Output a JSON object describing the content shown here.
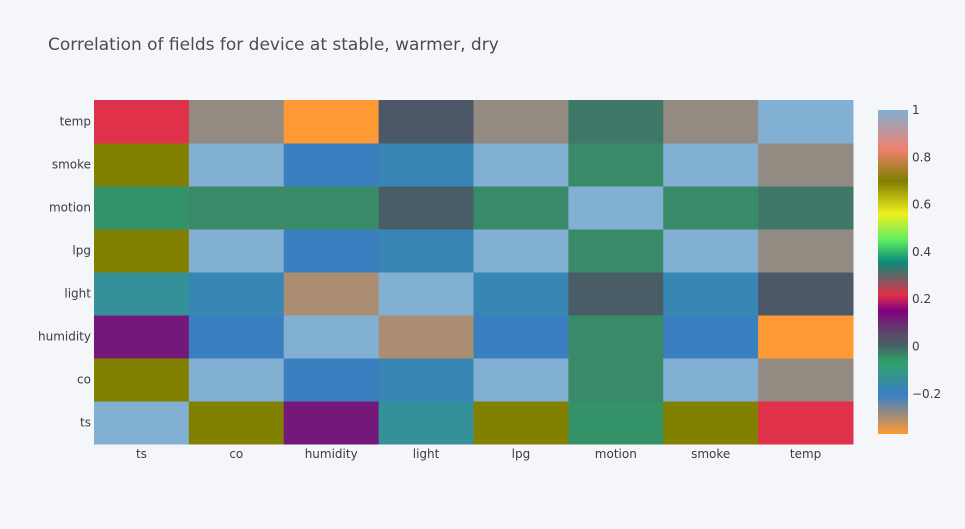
{
  "chart_data": {
    "type": "heatmap",
    "title": "Correlation of fields for device at stable, warmer, dry",
    "x": [
      "ts",
      "co",
      "humidity",
      "light",
      "lpg",
      "motion",
      "smoke",
      "temp"
    ],
    "y": [
      "ts",
      "co",
      "humidity",
      "light",
      "lpg",
      "motion",
      "smoke",
      "temp"
    ],
    "z": [
      [
        1.0,
        0.7,
        0.12,
        -0.14,
        0.7,
        -0.05,
        0.7,
        0.22
      ],
      [
        0.7,
        1.0,
        -0.2,
        -0.18,
        1.0,
        -0.04,
        1.0,
        -0.28
      ],
      [
        0.12,
        -0.2,
        1.0,
        -0.3,
        -0.2,
        -0.04,
        -0.2,
        -0.37
      ],
      [
        -0.14,
        -0.18,
        -0.3,
        1.0,
        -0.18,
        0.01,
        -0.18,
        0.02
      ],
      [
        0.7,
        1.0,
        -0.2,
        -0.18,
        1.0,
        -0.04,
        1.0,
        -0.28
      ],
      [
        -0.05,
        -0.04,
        -0.04,
        0.01,
        -0.04,
        1.0,
        -0.04,
        -0.02
      ],
      [
        0.7,
        1.0,
        -0.2,
        -0.18,
        1.0,
        -0.04,
        1.0,
        -0.28
      ],
      [
        0.22,
        -0.28,
        -0.37,
        0.02,
        -0.28,
        -0.02,
        -0.28,
        1.0
      ]
    ],
    "zmin": -0.37,
    "zmax": 1.0,
    "colorbar": {
      "tickvals": [
        1,
        0.8,
        0.6,
        0.4,
        0.2,
        0,
        -0.2
      ],
      "ticktext": [
        "1",
        "0.8",
        "0.6",
        "0.4",
        "0.2",
        "0",
        "−0.2"
      ]
    },
    "colorscale": [
      [
        0.0,
        "#ff9933"
      ],
      [
        0.12,
        "#3a7fc4"
      ],
      [
        0.22,
        "#2ea36a"
      ],
      [
        0.28,
        "#4a5a66"
      ],
      [
        0.31,
        "#5a4a6a"
      ],
      [
        0.38,
        "#800080"
      ],
      [
        0.43,
        "#e0304a"
      ],
      [
        0.53,
        "#0a8a7a"
      ],
      [
        0.6,
        "#60ee60"
      ],
      [
        0.68,
        "#f0f020"
      ],
      [
        0.78,
        "#808000"
      ],
      [
        0.88,
        "#f08070"
      ],
      [
        1.0,
        "#82b0d2"
      ]
    ],
    "grid": false
  }
}
